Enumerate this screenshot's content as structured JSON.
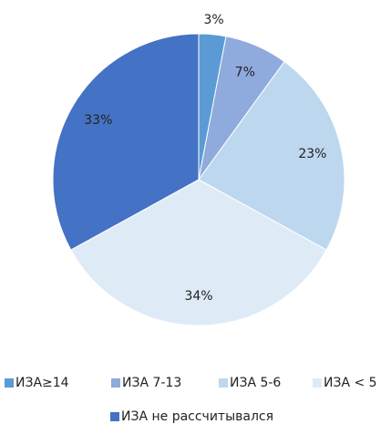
{
  "chart_data": {
    "type": "pie",
    "categories": [
      "ИЗА≥14",
      "ИЗА 7-13",
      "ИЗА 5-6",
      "ИЗА < 5",
      "ИЗА не рассчитывался"
    ],
    "values": [
      3,
      7,
      23,
      34,
      33
    ],
    "value_labels": [
      "3%",
      "7%",
      "23%",
      "34%",
      "33%"
    ],
    "colors": [
      "#5b9bd5",
      "#8faadc",
      "#bdd7ee",
      "#deebf7",
      "#4472c4"
    ],
    "legend": "bottom"
  }
}
